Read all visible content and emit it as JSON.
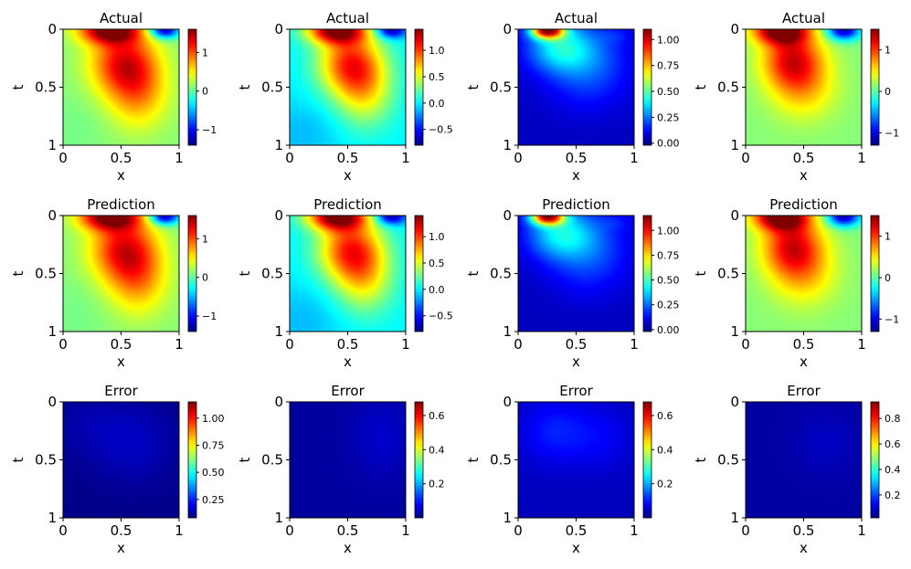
{
  "figure": {
    "row_titles": [
      "Actual",
      "Prediction",
      "Error"
    ],
    "colormap": "jet"
  },
  "chart_data": [
    {
      "type": "heatmap",
      "row": 0,
      "col": 0,
      "title": "Actual",
      "xlabel": "x",
      "ylabel": "t",
      "xlim": [
        0,
        1
      ],
      "ylim": [
        0,
        1
      ],
      "y_inverted": true,
      "x_ticks": [
        "0",
        "0.5",
        "1"
      ],
      "y_ticks": [
        "0",
        "0.5",
        "1"
      ],
      "clim": [
        -1.4,
        1.6
      ],
      "colorbar_ticks": [
        {
          "value": 1,
          "label": "1"
        },
        {
          "value": 0,
          "label": "0"
        },
        {
          "value": -1,
          "label": "−1"
        }
      ],
      "field": {
        "kind": "wave",
        "bg": 0.12,
        "blobs": [
          {
            "x": 0.4,
            "t": 0.0,
            "amp": 1.5,
            "sx": 0.18,
            "st": 0.08
          },
          {
            "x": 0.52,
            "t": 0.28,
            "amp": 1.05,
            "sx": 0.2,
            "st": 0.2
          },
          {
            "x": 0.65,
            "t": 0.55,
            "amp": 0.6,
            "sx": 0.18,
            "st": 0.22
          },
          {
            "x": 0.88,
            "t": 0.0,
            "amp": -1.4,
            "sx": 0.09,
            "st": 0.05
          },
          {
            "x": 0.1,
            "t": 0.85,
            "amp": -0.05,
            "sx": 0.2,
            "st": 0.2
          }
        ]
      }
    },
    {
      "type": "heatmap",
      "row": 0,
      "col": 1,
      "title": "Actual",
      "xlabel": "x",
      "ylabel": "t",
      "xlim": [
        0,
        1
      ],
      "ylim": [
        0,
        1
      ],
      "y_inverted": true,
      "x_ticks": [
        "0",
        "0.5",
        "1"
      ],
      "y_ticks": [
        "0",
        "0.5",
        "1"
      ],
      "clim": [
        -0.8,
        1.4
      ],
      "colorbar_ticks": [
        {
          "value": 1.0,
          "label": "1.0"
        },
        {
          "value": 0.5,
          "label": "0.5"
        },
        {
          "value": 0.0,
          "label": "0.0"
        },
        {
          "value": -0.5,
          "label": "−0.5"
        }
      ],
      "field": {
        "kind": "wave",
        "bg": 0.0,
        "blobs": [
          {
            "x": 0.4,
            "t": 0.0,
            "amp": 1.3,
            "sx": 0.18,
            "st": 0.08
          },
          {
            "x": 0.52,
            "t": 0.28,
            "amp": 0.95,
            "sx": 0.2,
            "st": 0.2
          },
          {
            "x": 0.65,
            "t": 0.55,
            "amp": 0.5,
            "sx": 0.18,
            "st": 0.22
          },
          {
            "x": 0.88,
            "t": 0.0,
            "amp": -0.8,
            "sx": 0.09,
            "st": 0.05
          },
          {
            "x": 0.1,
            "t": 0.9,
            "amp": -0.12,
            "sx": 0.25,
            "st": 0.2
          }
        ]
      }
    },
    {
      "type": "heatmap",
      "row": 0,
      "col": 2,
      "title": "Actual",
      "xlabel": "x",
      "ylabel": "t",
      "xlim": [
        0,
        1
      ],
      "ylim": [
        0,
        1
      ],
      "y_inverted": true,
      "x_ticks": [
        "0",
        "0.5",
        "1"
      ],
      "y_ticks": [
        "0",
        "0.5",
        "1"
      ],
      "clim": [
        -0.02,
        1.1
      ],
      "colorbar_ticks": [
        {
          "value": 1.0,
          "label": "1.00"
        },
        {
          "value": 0.75,
          "label": "0.75"
        },
        {
          "value": 0.5,
          "label": "0.50"
        },
        {
          "value": 0.25,
          "label": "0.25"
        },
        {
          "value": 0.0,
          "label": "0.00"
        }
      ],
      "field": {
        "kind": "wave",
        "bg": 0.05,
        "blobs": [
          {
            "x": 0.25,
            "t": 0.0,
            "amp": 0.95,
            "sx": 0.1,
            "st": 0.05
          },
          {
            "x": 0.35,
            "t": 0.15,
            "amp": 0.3,
            "sx": 0.2,
            "st": 0.15
          },
          {
            "x": 0.6,
            "t": 0.3,
            "amp": 0.18,
            "sx": 0.25,
            "st": 0.25
          },
          {
            "x": 0.85,
            "t": 0.05,
            "amp": 0.05,
            "sx": 0.1,
            "st": 0.05
          }
        ]
      }
    },
    {
      "type": "heatmap",
      "row": 0,
      "col": 3,
      "title": "Actual",
      "xlabel": "x",
      "ylabel": "t",
      "xlim": [
        0,
        1
      ],
      "ylim": [
        0,
        1
      ],
      "y_inverted": true,
      "x_ticks": [
        "0",
        "0.5",
        "1"
      ],
      "y_ticks": [
        "0",
        "0.5",
        "1"
      ],
      "clim": [
        -1.3,
        1.5
      ],
      "colorbar_ticks": [
        {
          "value": 1,
          "label": "1"
        },
        {
          "value": 0,
          "label": "0"
        },
        {
          "value": -1,
          "label": "−1"
        }
      ],
      "field": {
        "kind": "wave",
        "bg": 0.12,
        "blobs": [
          {
            "x": 0.3,
            "t": 0.0,
            "amp": 1.5,
            "sx": 0.16,
            "st": 0.08
          },
          {
            "x": 0.4,
            "t": 0.25,
            "amp": 1.0,
            "sx": 0.18,
            "st": 0.18
          },
          {
            "x": 0.5,
            "t": 0.5,
            "amp": 0.45,
            "sx": 0.2,
            "st": 0.2
          },
          {
            "x": 0.85,
            "t": 0.0,
            "amp": -1.3,
            "sx": 0.1,
            "st": 0.06
          }
        ]
      }
    },
    {
      "type": "heatmap",
      "row": 1,
      "col": 0,
      "title": "Prediction",
      "xlabel": "x",
      "ylabel": "t",
      "xlim": [
        0,
        1
      ],
      "ylim": [
        0,
        1
      ],
      "y_inverted": true,
      "x_ticks": [
        "0",
        "0.5",
        "1"
      ],
      "y_ticks": [
        "0",
        "0.5",
        "1"
      ],
      "clim": [
        -1.4,
        1.6
      ],
      "colorbar_ticks": [
        {
          "value": 1,
          "label": "1"
        },
        {
          "value": 0,
          "label": "0"
        },
        {
          "value": -1,
          "label": "−1"
        }
      ],
      "field": {
        "kind": "wave",
        "bg": 0.12,
        "blobs": [
          {
            "x": 0.4,
            "t": 0.0,
            "amp": 1.5,
            "sx": 0.18,
            "st": 0.08
          },
          {
            "x": 0.52,
            "t": 0.28,
            "amp": 1.05,
            "sx": 0.2,
            "st": 0.2
          },
          {
            "x": 0.65,
            "t": 0.55,
            "amp": 0.6,
            "sx": 0.18,
            "st": 0.22
          },
          {
            "x": 0.88,
            "t": 0.0,
            "amp": -1.4,
            "sx": 0.09,
            "st": 0.05
          },
          {
            "x": 0.1,
            "t": 0.85,
            "amp": -0.05,
            "sx": 0.2,
            "st": 0.2
          }
        ]
      }
    },
    {
      "type": "heatmap",
      "row": 1,
      "col": 1,
      "title": "Prediction",
      "xlabel": "x",
      "ylabel": "t",
      "xlim": [
        0,
        1
      ],
      "ylim": [
        0,
        1
      ],
      "y_inverted": true,
      "x_ticks": [
        "0",
        "0.5",
        "1"
      ],
      "y_ticks": [
        "0",
        "0.5",
        "1"
      ],
      "clim": [
        -0.8,
        1.4
      ],
      "colorbar_ticks": [
        {
          "value": 1.0,
          "label": "1.0"
        },
        {
          "value": 0.5,
          "label": "0.5"
        },
        {
          "value": 0.0,
          "label": "0.0"
        },
        {
          "value": -0.5,
          "label": "−0.5"
        }
      ],
      "field": {
        "kind": "wave",
        "bg": 0.0,
        "blobs": [
          {
            "x": 0.4,
            "t": 0.0,
            "amp": 1.3,
            "sx": 0.18,
            "st": 0.08
          },
          {
            "x": 0.52,
            "t": 0.28,
            "amp": 0.95,
            "sx": 0.2,
            "st": 0.2
          },
          {
            "x": 0.65,
            "t": 0.55,
            "amp": 0.5,
            "sx": 0.18,
            "st": 0.22
          },
          {
            "x": 0.88,
            "t": 0.0,
            "amp": -0.8,
            "sx": 0.09,
            "st": 0.05
          },
          {
            "x": 0.1,
            "t": 0.9,
            "amp": -0.12,
            "sx": 0.25,
            "st": 0.2
          }
        ]
      }
    },
    {
      "type": "heatmap",
      "row": 1,
      "col": 2,
      "title": "Prediction",
      "xlabel": "x",
      "ylabel": "t",
      "xlim": [
        0,
        1
      ],
      "ylim": [
        0,
        1
      ],
      "y_inverted": true,
      "x_ticks": [
        "0",
        "0.5",
        "1"
      ],
      "y_ticks": [
        "0",
        "0.5",
        "1"
      ],
      "clim": [
        -0.02,
        1.15
      ],
      "colorbar_ticks": [
        {
          "value": 1.0,
          "label": "1.00"
        },
        {
          "value": 0.75,
          "label": "0.75"
        },
        {
          "value": 0.5,
          "label": "0.50"
        },
        {
          "value": 0.25,
          "label": "0.25"
        },
        {
          "value": 0.0,
          "label": "0.00"
        }
      ],
      "field": {
        "kind": "wave",
        "bg": 0.05,
        "blobs": [
          {
            "x": 0.25,
            "t": 0.0,
            "amp": 0.95,
            "sx": 0.1,
            "st": 0.05
          },
          {
            "x": 0.35,
            "t": 0.15,
            "amp": 0.3,
            "sx": 0.2,
            "st": 0.15
          },
          {
            "x": 0.6,
            "t": 0.3,
            "amp": 0.18,
            "sx": 0.25,
            "st": 0.25
          },
          {
            "x": 0.85,
            "t": 0.05,
            "amp": 0.05,
            "sx": 0.1,
            "st": 0.05
          }
        ]
      }
    },
    {
      "type": "heatmap",
      "row": 1,
      "col": 3,
      "title": "Prediction",
      "xlabel": "x",
      "ylabel": "t",
      "xlim": [
        0,
        1
      ],
      "ylim": [
        0,
        1
      ],
      "y_inverted": true,
      "x_ticks": [
        "0",
        "0.5",
        "1"
      ],
      "y_ticks": [
        "0",
        "0.5",
        "1"
      ],
      "clim": [
        -1.3,
        1.5
      ],
      "colorbar_ticks": [
        {
          "value": 1,
          "label": "1"
        },
        {
          "value": 0,
          "label": "0"
        },
        {
          "value": -1,
          "label": "−1"
        }
      ],
      "field": {
        "kind": "wave",
        "bg": 0.12,
        "blobs": [
          {
            "x": 0.3,
            "t": 0.0,
            "amp": 1.5,
            "sx": 0.16,
            "st": 0.08
          },
          {
            "x": 0.4,
            "t": 0.25,
            "amp": 1.0,
            "sx": 0.18,
            "st": 0.18
          },
          {
            "x": 0.5,
            "t": 0.5,
            "amp": 0.45,
            "sx": 0.2,
            "st": 0.2
          },
          {
            "x": 0.85,
            "t": 0.0,
            "amp": -1.3,
            "sx": 0.1,
            "st": 0.06
          }
        ]
      }
    },
    {
      "type": "heatmap",
      "row": 2,
      "col": 0,
      "title": "Error",
      "xlabel": "x",
      "ylabel": "t",
      "xlim": [
        0,
        1
      ],
      "ylim": [
        0,
        1
      ],
      "y_inverted": true,
      "x_ticks": [
        "0",
        "0.5",
        "1"
      ],
      "y_ticks": [
        "0",
        "0.5",
        "1"
      ],
      "clim": [
        0.08,
        1.15
      ],
      "colorbar_ticks": [
        {
          "value": 1.0,
          "label": "1.00"
        },
        {
          "value": 0.75,
          "label": "0.75"
        },
        {
          "value": 0.5,
          "label": "0.50"
        },
        {
          "value": 0.25,
          "label": "0.25"
        }
      ],
      "field": {
        "kind": "error",
        "bg": 0.09,
        "blobs": [
          {
            "x": 0.6,
            "t": 0.35,
            "amp": 0.06,
            "sx": 0.25,
            "st": 0.25
          },
          {
            "x": 0.2,
            "t": 0.2,
            "amp": 0.03,
            "sx": 0.2,
            "st": 0.2
          }
        ]
      }
    },
    {
      "type": "heatmap",
      "row": 2,
      "col": 1,
      "title": "Error",
      "xlabel": "x",
      "ylabel": "t",
      "xlim": [
        0,
        1
      ],
      "ylim": [
        0,
        1
      ],
      "y_inverted": true,
      "x_ticks": [
        "0",
        "0.5",
        "1"
      ],
      "y_ticks": [
        "0",
        "0.5",
        "1"
      ],
      "clim": [
        0.0,
        0.68
      ],
      "colorbar_ticks": [
        {
          "value": 0.6,
          "label": "0.6"
        },
        {
          "value": 0.4,
          "label": "0.4"
        },
        {
          "value": 0.2,
          "label": "0.2"
        }
      ],
      "field": {
        "kind": "error",
        "bg": 0.02,
        "blobs": [
          {
            "x": 0.8,
            "t": 0.3,
            "amp": 0.03,
            "sx": 0.2,
            "st": 0.25
          }
        ]
      }
    },
    {
      "type": "heatmap",
      "row": 2,
      "col": 2,
      "title": "Error",
      "xlabel": "x",
      "ylabel": "t",
      "xlim": [
        0,
        1
      ],
      "ylim": [
        0,
        1
      ],
      "y_inverted": true,
      "x_ticks": [
        "0",
        "0.5",
        "1"
      ],
      "y_ticks": [
        "0",
        "0.5",
        "1"
      ],
      "clim": [
        0.0,
        0.68
      ],
      "colorbar_ticks": [
        {
          "value": 0.6,
          "label": "0.6"
        },
        {
          "value": 0.4,
          "label": "0.4"
        },
        {
          "value": 0.2,
          "label": "0.2"
        }
      ],
      "field": {
        "kind": "error",
        "bg": 0.04,
        "blobs": [
          {
            "x": 0.3,
            "t": 0.25,
            "amp": 0.06,
            "sx": 0.2,
            "st": 0.2
          },
          {
            "x": 0.7,
            "t": 0.3,
            "amp": 0.04,
            "sx": 0.2,
            "st": 0.2
          }
        ]
      }
    },
    {
      "type": "heatmap",
      "row": 2,
      "col": 3,
      "title": "Error",
      "xlabel": "x",
      "ylabel": "t",
      "xlim": [
        0,
        1
      ],
      "ylim": [
        0,
        1
      ],
      "y_inverted": true,
      "x_ticks": [
        "0",
        "0.5",
        "1"
      ],
      "y_ticks": [
        "0",
        "0.5",
        "1"
      ],
      "clim": [
        0.02,
        0.93
      ],
      "colorbar_ticks": [
        {
          "value": 0.8,
          "label": "0.8"
        },
        {
          "value": 0.6,
          "label": "0.6"
        },
        {
          "value": 0.4,
          "label": "0.4"
        },
        {
          "value": 0.2,
          "label": "0.2"
        }
      ],
      "field": {
        "kind": "error",
        "bg": 0.05,
        "blobs": [
          {
            "x": 0.7,
            "t": 0.35,
            "amp": 0.03,
            "sx": 0.2,
            "st": 0.2
          }
        ]
      }
    }
  ]
}
